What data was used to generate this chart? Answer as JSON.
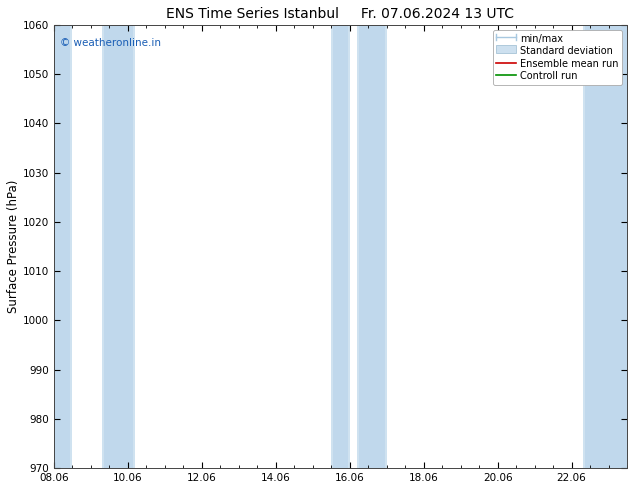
{
  "title": "ENS Time Series Istanbul",
  "title2": "Fr. 07.06.2024 13 UTC",
  "ylabel": "Surface Pressure (hPa)",
  "ylim": [
    970,
    1060
  ],
  "yticks": [
    970,
    980,
    990,
    1000,
    1010,
    1020,
    1030,
    1040,
    1050,
    1060
  ],
  "xlim_start": 0,
  "xlim_end": 15.5,
  "xtick_labels": [
    "08.06",
    "10.06",
    "12.06",
    "14.06",
    "16.06",
    "18.06",
    "20.06",
    "22.06"
  ],
  "xtick_positions": [
    0,
    2,
    4,
    6,
    8,
    10,
    12,
    14
  ],
  "shaded_bands_outer": [
    {
      "x_start": 0.0,
      "x_end": 0.5
    },
    {
      "x_start": 1.3,
      "x_end": 2.2
    },
    {
      "x_start": 7.5,
      "x_end": 8.0
    },
    {
      "x_start": 8.2,
      "x_end": 9.0
    },
    {
      "x_start": 14.3,
      "x_end": 15.5
    }
  ],
  "shaded_bands_inner": [
    {
      "x_start": 0.0,
      "x_end": 0.45
    },
    {
      "x_start": 1.35,
      "x_end": 2.15
    },
    {
      "x_start": 7.55,
      "x_end": 7.95
    },
    {
      "x_start": 8.25,
      "x_end": 8.95
    },
    {
      "x_start": 14.35,
      "x_end": 15.5
    }
  ],
  "color_outer": "#cfe2f0",
  "color_inner": "#c0d8ec",
  "copyright_text": "© weatheronline.in",
  "copyright_color": "#1a5eb5",
  "background_color": "#ffffff",
  "plot_bg_color": "#ffffff",
  "legend_labels": [
    "min/max",
    "Standard deviation",
    "Ensemble mean run",
    "Controll run"
  ],
  "legend_color_minmax": "#a8c8e0",
  "legend_color_std": "#cde0ef",
  "legend_color_ens": "#cc0000",
  "legend_color_ctrl": "#009000",
  "title_fontsize": 10,
  "tick_fontsize": 7.5,
  "ylabel_fontsize": 8.5
}
